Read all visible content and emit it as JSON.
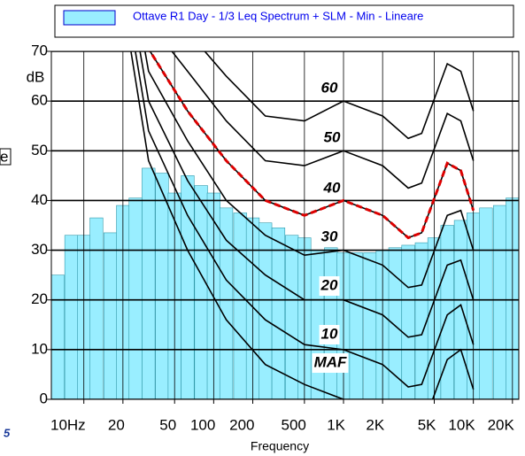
{
  "chart_data": {
    "type": "bar",
    "legend": "Ottave R1 Day - 1/3 Leq Spectrum + SLM - Min - Lineare",
    "x_label": "Frequency",
    "y_unit": "dB",
    "y_label": "e",
    "corner_note": "5",
    "x": [
      6.3,
      8,
      10,
      12.5,
      16,
      20,
      25,
      31.5,
      40,
      50,
      63,
      80,
      100,
      125,
      160,
      200,
      250,
      315,
      400,
      500,
      630,
      800,
      1000,
      1250,
      1600,
      2000,
      2500,
      3150,
      4000,
      5000,
      6300,
      8000,
      10000,
      12500,
      16000,
      20000
    ],
    "values": [
      25,
      33,
      33,
      36.5,
      33.5,
      39,
      40.5,
      46.5,
      45.5,
      41.5,
      45,
      43,
      41.5,
      38.5,
      37.5,
      36.5,
      35.5,
      34.5,
      33,
      32.5,
      30,
      30.5,
      29.5,
      29.5,
      29.5,
      30,
      30.5,
      31,
      31.5,
      32.5,
      35,
      36,
      37.5,
      38.5,
      39,
      40.5
    ],
    "color": "#99eeff",
    "xlim": [
      5.62,
      22387
    ],
    "ylim": [
      0,
      70
    ],
    "log_x": true,
    "grid": true,
    "xticks": [
      {
        "value": 10,
        "label": "10Hz"
      },
      20,
      50,
      100,
      200,
      500,
      {
        "value": 1000,
        "label": "1K"
      },
      {
        "value": 2000,
        "label": "2K"
      },
      {
        "value": 5000,
        "label": "5K"
      },
      {
        "value": 10000,
        "label": "10K"
      },
      {
        "value": 20000,
        "label": "20K"
      }
    ],
    "yticks": [
      0,
      10,
      20,
      30,
      40,
      50,
      60,
      70
    ],
    "contour_x": [
      20,
      31.5,
      63,
      125,
      250,
      500,
      1000,
      2000,
      3150,
      4000,
      6300,
      8000,
      10000
    ],
    "contours": [
      {
        "name": "60",
        "values": [
          110,
          82,
          74,
          65,
          57,
          56,
          60,
          57,
          52.5,
          53.5,
          67.5,
          66,
          58
        ]
      },
      {
        "name": "50",
        "values": [
          105,
          76,
          66,
          56,
          48,
          47,
          50,
          47,
          42.5,
          43.5,
          57.5,
          56,
          48
        ]
      },
      {
        "name": "40",
        "values": [
          100,
          70.5,
          58,
          48,
          40,
          37,
          40,
          37,
          32.5,
          33.5,
          47.5,
          46,
          38
        ],
        "highlight": "#dd0000"
      },
      {
        "name": "30",
        "values": [
          95,
          66,
          52,
          40,
          33,
          29,
          30,
          27,
          22.5,
          23,
          37,
          38,
          30
        ]
      },
      {
        "name": "20",
        "values": [
          90,
          60,
          44,
          32,
          25,
          20,
          20,
          17,
          12.5,
          13,
          27,
          28,
          20
        ]
      },
      {
        "name": "10",
        "values": [
          85,
          54,
          37,
          24,
          16,
          11,
          10,
          7,
          2.5,
          3,
          17,
          19,
          11
        ]
      },
      {
        "name": "MAF",
        "values": [
          80,
          48,
          30,
          16,
          7,
          3,
          0,
          -3,
          -7,
          -6,
          8,
          10,
          2
        ]
      }
    ]
  }
}
